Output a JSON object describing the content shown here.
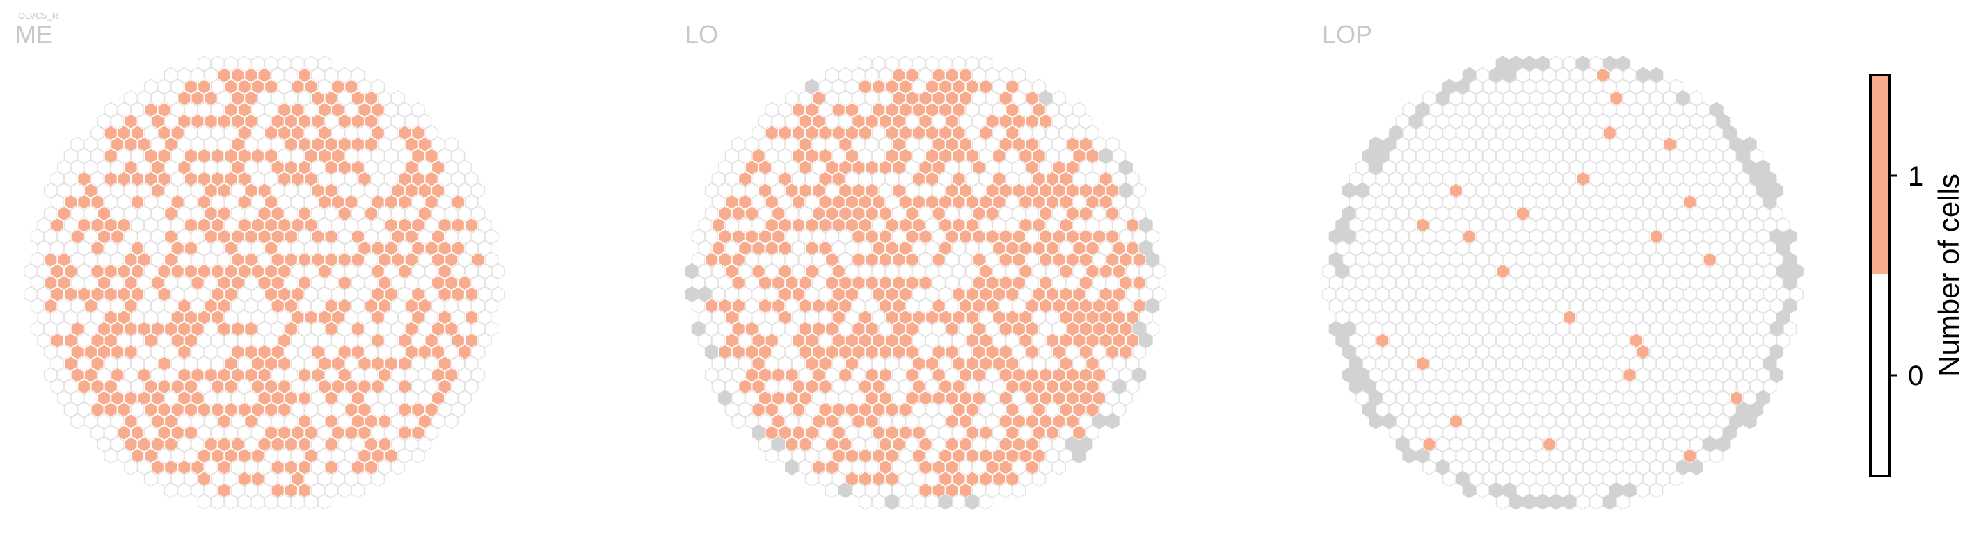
{
  "figure": {
    "cell_type": "OLVC5_R"
  },
  "colors": {
    "empty_hex_fill": "#ffffff",
    "empty_hex_stroke": "#e3e3e3",
    "filled": "#f9ab8d",
    "outside": "#d2d2d2",
    "title": "#c8c8c8"
  },
  "chart_data": {
    "type": "heatmap",
    "description_of_values": "Number of cells per hexagonal column",
    "panels": [
      {
        "name": "ME",
        "filled_fraction_approx": 0.55,
        "outside_positions": 0
      },
      {
        "name": "LO",
        "filled_fraction_approx": 0.6,
        "outside_positions": 20
      },
      {
        "name": "LOP",
        "filled_fraction_approx": 0.02,
        "outside_positions": 70
      }
    ],
    "colorbar": {
      "label": "Number of cells",
      "ticks": [
        "0",
        "1"
      ],
      "range": [
        0,
        1
      ],
      "colors": [
        "#ffffff",
        "#f9ab8d"
      ]
    }
  }
}
